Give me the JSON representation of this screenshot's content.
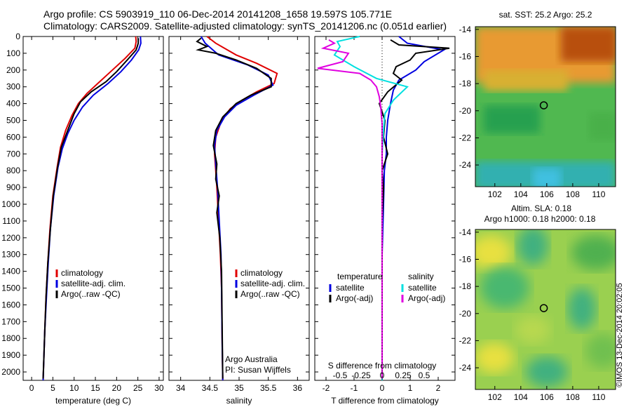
{
  "header": {
    "line1": "Argo profile: CS 5903919_110 06-Dec-2014 20141208_1658 19.597S 105.771E",
    "line2": "Climatology: CARS2009. Satellite-adjusted climatology: synTS_20141206.nc (0.051d earlier)"
  },
  "credit": "©IMOS 13-Dec-2014 20:02:05",
  "chart_data": [
    {
      "type": "line",
      "id": "temperature",
      "xlabel": "temperature (deg C)",
      "xlim": [
        -2,
        31
      ],
      "xticks": [
        0,
        5,
        10,
        15,
        20,
        25,
        30
      ],
      "ylim": [
        0,
        2050
      ],
      "yticks": [
        0,
        100,
        200,
        300,
        400,
        500,
        600,
        700,
        800,
        900,
        1000,
        1100,
        1200,
        1300,
        1400,
        1500,
        1600,
        1700,
        1800,
        1900,
        2000
      ],
      "y_reversed": true,
      "legend": [
        "climatology",
        "satellite-adj. clim.",
        "Argo(..raw -QC)"
      ],
      "series": [
        {
          "name": "climatology",
          "color": "#e00000",
          "points": [
            [
              24.5,
              0
            ],
            [
              24.6,
              30
            ],
            [
              24.3,
              70
            ],
            [
              22,
              130
            ],
            [
              19,
              200
            ],
            [
              16,
              270
            ],
            [
              13,
              340
            ],
            [
              11,
              400
            ],
            [
              9.5,
              470
            ],
            [
              8,
              560
            ],
            [
              6.8,
              660
            ],
            [
              6,
              780
            ],
            [
              5,
              950
            ],
            [
              4.3,
              1150
            ],
            [
              3.8,
              1350
            ],
            [
              3.4,
              1550
            ],
            [
              3.1,
              1750
            ],
            [
              2.9,
              1900
            ],
            [
              2.7,
              2050
            ]
          ]
        },
        {
          "name": "satellite-adj. clim.",
          "color": "#0000e0",
          "points": [
            [
              25.6,
              0
            ],
            [
              25.7,
              40
            ],
            [
              25.2,
              80
            ],
            [
              23.5,
              140
            ],
            [
              21,
              210
            ],
            [
              18,
              280
            ],
            [
              14.5,
              350
            ],
            [
              12,
              420
            ],
            [
              10,
              500
            ],
            [
              8.5,
              580
            ],
            [
              7.2,
              670
            ],
            [
              6.2,
              780
            ],
            [
              5.2,
              950
            ],
            [
              4.4,
              1150
            ],
            [
              3.9,
              1350
            ],
            [
              3.5,
              1550
            ],
            [
              3.1,
              1750
            ],
            [
              2.9,
              1900
            ],
            [
              2.7,
              2050
            ]
          ]
        },
        {
          "name": "Argo(..raw -QC)",
          "color": "#000000",
          "points": [
            [
              25.1,
              10
            ],
            [
              25.1,
              40
            ],
            [
              24.6,
              80
            ],
            [
              22.5,
              140
            ],
            [
              20,
              210
            ],
            [
              17.5,
              270
            ],
            [
              14,
              330
            ],
            [
              11.5,
              390
            ],
            [
              10,
              460
            ],
            [
              8.5,
              560
            ],
            [
              7,
              660
            ],
            [
              6.1,
              780
            ],
            [
              5.1,
              950
            ],
            [
              4.4,
              1150
            ],
            [
              3.8,
              1350
            ],
            [
              3.4,
              1550
            ],
            [
              3.1,
              1750
            ],
            [
              2.9,
              1900
            ],
            [
              2.7,
              2040
            ]
          ]
        }
      ]
    },
    {
      "type": "line",
      "id": "salinity",
      "xlabel": "salinity",
      "xlim": [
        33.8,
        36.2
      ],
      "xticks": [
        34,
        34.5,
        35,
        35.5,
        36
      ],
      "ylim": [
        0,
        2050
      ],
      "y_reversed": true,
      "legend": [
        "climatology",
        "satellite-adj. clim.",
        "Argo(..raw -QC)"
      ],
      "annotation": [
        "Argo Australia",
        "PI: Susan Wijffels"
      ],
      "series": [
        {
          "name": "climatology",
          "color": "#e00000",
          "points": [
            [
              34.45,
              0
            ],
            [
              34.6,
              40
            ],
            [
              34.95,
              110
            ],
            [
              35.3,
              160
            ],
            [
              35.65,
              220
            ],
            [
              35.6,
              280
            ],
            [
              35.3,
              330
            ],
            [
              35.05,
              380
            ],
            [
              34.85,
              430
            ],
            [
              34.7,
              500
            ],
            [
              34.6,
              600
            ],
            [
              34.58,
              700
            ],
            [
              34.6,
              800
            ],
            [
              34.62,
              900
            ],
            [
              34.65,
              1100
            ],
            [
              34.68,
              1300
            ],
            [
              34.7,
              1500
            ],
            [
              34.71,
              1800
            ],
            [
              34.72,
              2050
            ]
          ]
        },
        {
          "name": "satellite-adj. clim.",
          "color": "#0000e0",
          "points": [
            [
              34.35,
              0
            ],
            [
              34.42,
              40
            ],
            [
              34.65,
              110
            ],
            [
              35.15,
              170
            ],
            [
              35.5,
              230
            ],
            [
              35.58,
              290
            ],
            [
              35.25,
              350
            ],
            [
              34.95,
              410
            ],
            [
              34.75,
              480
            ],
            [
              34.62,
              560
            ],
            [
              34.58,
              650
            ],
            [
              34.6,
              760
            ],
            [
              34.63,
              900
            ],
            [
              34.66,
              1100
            ],
            [
              34.69,
              1300
            ],
            [
              34.7,
              1500
            ],
            [
              34.71,
              1800
            ],
            [
              34.72,
              2050
            ]
          ]
        },
        {
          "name": "Argo(..raw -QC)",
          "color": "#000000",
          "points": [
            [
              34.35,
              10
            ],
            [
              34.28,
              30
            ],
            [
              34.45,
              60
            ],
            [
              34.3,
              80
            ],
            [
              34.6,
              100
            ],
            [
              34.95,
              140
            ],
            [
              35.3,
              190
            ],
            [
              35.55,
              250
            ],
            [
              35.55,
              300
            ],
            [
              35.2,
              350
            ],
            [
              34.95,
              400
            ],
            [
              34.72,
              480
            ],
            [
              34.6,
              560
            ],
            [
              34.56,
              650
            ],
            [
              34.62,
              760
            ],
            [
              34.6,
              850
            ],
            [
              34.66,
              950
            ],
            [
              34.62,
              1050
            ],
            [
              34.67,
              1200
            ],
            [
              34.7,
              1400
            ],
            [
              34.71,
              1700
            ],
            [
              34.72,
              2040
            ]
          ]
        }
      ]
    },
    {
      "type": "line",
      "id": "difference",
      "xlabel": "T difference from climatology",
      "xlabel_top": "S difference from climatology",
      "xlim": [
        -2.4,
        2.6
      ],
      "xticks": [
        -2,
        -1,
        0,
        1,
        2
      ],
      "xticks_top": [
        "-0.5",
        "-0.25",
        "0",
        "0.25",
        "0.5"
      ],
      "ylim": [
        0,
        2050
      ],
      "y_reversed": true,
      "legend_headers": [
        "temperature",
        "salinity"
      ],
      "legend": [
        "satellite",
        "Argo(-adj)",
        "satellite",
        "Argo(-adj)"
      ],
      "series": [
        {
          "name": "T satellite",
          "color": "#0000e0",
          "points": [
            [
              0.6,
              0
            ],
            [
              0.9,
              40
            ],
            [
              2.2,
              80
            ],
            [
              1.5,
              150
            ],
            [
              1.2,
              200
            ],
            [
              0.6,
              260
            ],
            [
              0.4,
              320
            ],
            [
              0.3,
              400
            ],
            [
              0.2,
              500
            ],
            [
              0.15,
              600
            ],
            [
              0.15,
              700
            ],
            [
              0.08,
              800
            ],
            [
              0.05,
              1000
            ],
            [
              0.0,
              1300
            ],
            [
              0.0,
              2050
            ]
          ]
        },
        {
          "name": "T Argo(-adj)",
          "color": "#000000",
          "points": [
            [
              0.3,
              20
            ],
            [
              0.6,
              50
            ],
            [
              2.4,
              70
            ],
            [
              1.2,
              100
            ],
            [
              1.0,
              140
            ],
            [
              0.5,
              180
            ],
            [
              0.4,
              220
            ],
            [
              0.7,
              260
            ],
            [
              0.2,
              330
            ],
            [
              -0.1,
              400
            ],
            [
              0.1,
              500
            ],
            [
              0.05,
              600
            ],
            [
              0.2,
              700
            ],
            [
              0.0,
              800
            ],
            [
              0.05,
              900
            ],
            [
              0.0,
              1100
            ],
            [
              0.0,
              2040
            ]
          ]
        },
        {
          "name": "S satellite",
          "color": "#00e0e0",
          "points": [
            [
              -0.8,
              0
            ],
            [
              -1.6,
              30
            ],
            [
              -1.5,
              60
            ],
            [
              -1.7,
              110
            ],
            [
              -1.0,
              180
            ],
            [
              -0.2,
              250
            ],
            [
              0.9,
              300
            ],
            [
              0.4,
              380
            ],
            [
              0.1,
              460
            ],
            [
              0.05,
              560
            ],
            [
              0.0,
              700
            ],
            [
              0.0,
              2050
            ]
          ]
        },
        {
          "name": "S Argo(-adj)",
          "color": "#e000e0",
          "points": [
            [
              -1.9,
              20
            ],
            [
              -1.7,
              40
            ],
            [
              -2.1,
              70
            ],
            [
              -1.2,
              100
            ],
            [
              -1.4,
              150
            ],
            [
              -2.3,
              190
            ],
            [
              -0.8,
              220
            ],
            [
              -0.4,
              260
            ],
            [
              -0.2,
              300
            ],
            [
              -0.1,
              360
            ],
            [
              -0.05,
              420
            ],
            [
              0.0,
              520
            ],
            [
              0.0,
              2040
            ]
          ]
        }
      ]
    },
    {
      "type": "heatmap",
      "id": "sst-map",
      "title": "sat. SST: 25.2 Argo: 25.2",
      "xticks": [
        "102",
        "104",
        "106",
        "108",
        "110"
      ],
      "yticks": [
        "-14",
        "-16",
        "-18",
        "-20",
        "-22",
        "-24"
      ],
      "xlim": [
        100.5,
        111.3
      ],
      "ylim": [
        -25.6,
        -13.8
      ],
      "marker": [
        105.77,
        -19.6
      ]
    },
    {
      "type": "heatmap",
      "id": "sla-map",
      "title": "Altim. SLA: 0.18",
      "subtitle": "Argo h1000: 0.18 h2000: 0.18",
      "xticks": [
        "102",
        "104",
        "106",
        "108",
        "110"
      ],
      "yticks": [
        "-14",
        "-16",
        "-18",
        "-20",
        "-22",
        "-24"
      ],
      "xlim": [
        100.5,
        111.3
      ],
      "ylim": [
        -25.6,
        -13.8
      ],
      "marker": [
        105.77,
        -19.6
      ]
    }
  ]
}
